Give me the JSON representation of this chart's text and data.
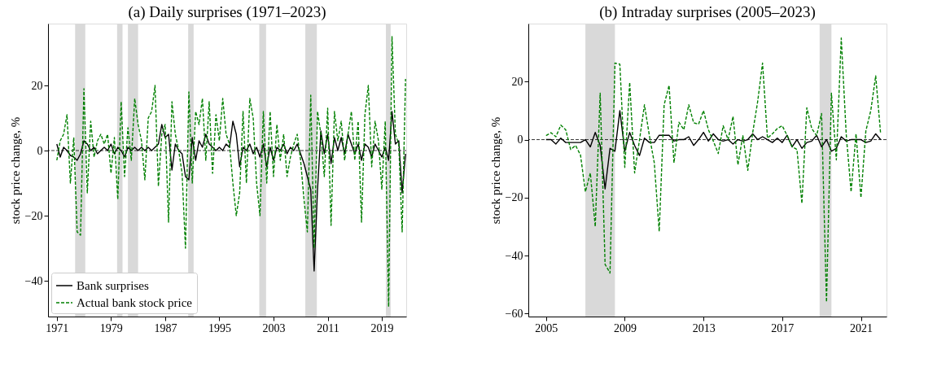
{
  "chart_data": [
    {
      "type": "line",
      "title": "(a) Daily surprises (1971–2023)",
      "ylabel": "stock price change, %",
      "x": [
        1971,
        1971.5,
        1972,
        1972.5,
        1973,
        1973.5,
        1974,
        1974.5,
        1975,
        1975.5,
        1976,
        1976.5,
        1977,
        1977.5,
        1978,
        1978.5,
        1979,
        1979.5,
        1980,
        1980.5,
        1981,
        1981.5,
        1982,
        1982.5,
        1983,
        1983.5,
        1984,
        1984.5,
        1985,
        1985.5,
        1986,
        1986.5,
        1987,
        1987.5,
        1988,
        1988.5,
        1989,
        1989.5,
        1990,
        1990.5,
        1991,
        1991.5,
        1992,
        1992.5,
        1993,
        1993.5,
        1994,
        1994.5,
        1995,
        1995.5,
        1996,
        1996.5,
        1997,
        1997.5,
        1998,
        1998.5,
        1999,
        1999.5,
        2000,
        2000.5,
        2001,
        2001.5,
        2002,
        2002.5,
        2003,
        2003.5,
        2004,
        2004.5,
        2005,
        2005.5,
        2006,
        2006.5,
        2007,
        2007.5,
        2008,
        2008.5,
        2009,
        2009.5,
        2010,
        2010.5,
        2011,
        2011.5,
        2012,
        2012.5,
        2013,
        2013.5,
        2014,
        2014.5,
        2015,
        2015.5,
        2016,
        2016.5,
        2017,
        2017.5,
        2018,
        2018.5,
        2019,
        2019.5,
        2020,
        2020.5,
        2021,
        2021.5,
        2022,
        2022.5
      ],
      "series": [
        {
          "name": "Bank surprises",
          "color": "#000000",
          "line_style": "solid",
          "values": [
            2,
            -2,
            1,
            0,
            -1.5,
            -2,
            -3,
            -1,
            3,
            2,
            0,
            1,
            -1,
            0,
            1,
            0,
            2,
            -1,
            1,
            0,
            -2,
            1,
            0,
            1,
            0,
            1,
            0,
            1,
            0,
            1,
            2,
            8,
            4,
            5,
            -6,
            2,
            0,
            -1,
            -8,
            -9,
            4,
            -3,
            3,
            1,
            5,
            2,
            1,
            0,
            1,
            0,
            2,
            1,
            9,
            5,
            -5,
            1,
            0,
            2,
            -1,
            1,
            -2,
            2,
            -5,
            1,
            -3,
            1,
            0,
            2,
            -1,
            1,
            0,
            2,
            -1,
            -4,
            -8,
            -12,
            -37,
            -12,
            6,
            -1,
            5,
            -4,
            4,
            0,
            4,
            -1,
            5,
            2,
            -1,
            2,
            -3,
            2,
            1,
            -2,
            2,
            0,
            -2,
            1,
            -3,
            12,
            2,
            3,
            -13,
            -1
          ]
        },
        {
          "name": "Actual bank stock price",
          "color": "#008000",
          "line_style": "dashed",
          "values": [
            -3,
            3,
            5,
            11,
            -10,
            4,
            -25,
            -26,
            19,
            -13,
            9,
            -2,
            3,
            5,
            2,
            5,
            -7,
            4,
            -15,
            15,
            -8,
            7,
            -3,
            16,
            8,
            3,
            -9,
            10,
            12,
            20,
            -11,
            5,
            8,
            -22,
            15,
            5,
            0,
            -7,
            -30,
            18,
            -10,
            12,
            8,
            16,
            -3,
            15,
            -7,
            11,
            3,
            16,
            5,
            2,
            -10,
            -20,
            -13,
            12,
            -10,
            16,
            10,
            -10,
            -20,
            12,
            -10,
            12,
            -8,
            8,
            -3,
            5,
            -8,
            -2,
            2,
            5,
            -3,
            -15,
            -25,
            17,
            -30,
            12,
            5,
            -8,
            13,
            -23,
            12,
            3,
            9,
            -3,
            5,
            12,
            -3,
            9,
            -22,
            11,
            20,
            -5,
            9,
            3,
            -12,
            9,
            -48,
            35,
            5,
            2,
            -25,
            22
          ]
        }
      ],
      "xlim": [
        1969.7,
        2022.6
      ],
      "xticks": [
        1971,
        1979,
        1987,
        1995,
        2003,
        2011,
        2019
      ],
      "ylim": [
        -51,
        39
      ],
      "yticks": [
        -40,
        -20,
        0,
        20
      ],
      "bands": [
        {
          "axis": "x",
          "from": 1973.7,
          "to": 1975.2,
          "color": "#d9d9d9"
        },
        {
          "axis": "x",
          "from": 1979.9,
          "to": 1980.7,
          "color": "#d9d9d9"
        },
        {
          "axis": "x",
          "from": 1981.5,
          "to": 1983.0,
          "color": "#d9d9d9"
        },
        {
          "axis": "x",
          "from": 1990.4,
          "to": 1991.2,
          "color": "#d9d9d9"
        },
        {
          "axis": "x",
          "from": 2000.9,
          "to": 2001.9,
          "color": "#d9d9d9"
        },
        {
          "axis": "x",
          "from": 2007.7,
          "to": 2009.4,
          "color": "#d9d9d9"
        },
        {
          "axis": "x",
          "from": 2019.6,
          "to": 2020.3,
          "color": "#d9d9d9"
        }
      ],
      "ref_lines": [
        {
          "axis": "y",
          "value": 0,
          "color": "#000000",
          "line_style": "dashed"
        }
      ],
      "grid": false,
      "legend": "bottom left",
      "marker": "none"
    },
    {
      "type": "line",
      "title": "(b) Intraday surprises (2005–2023)",
      "ylabel": "stock price change, %",
      "x": [
        2005,
        2005.25,
        2005.5,
        2005.75,
        2006,
        2006.25,
        2006.5,
        2006.75,
        2007,
        2007.25,
        2007.5,
        2007.75,
        2008,
        2008.25,
        2008.5,
        2008.75,
        2009,
        2009.25,
        2009.5,
        2009.75,
        2010,
        2010.25,
        2010.5,
        2010.75,
        2011,
        2011.25,
        2011.5,
        2011.75,
        2012,
        2012.25,
        2012.5,
        2012.75,
        2013,
        2013.25,
        2013.5,
        2013.75,
        2014,
        2014.25,
        2014.5,
        2014.75,
        2015,
        2015.25,
        2015.5,
        2015.75,
        2016,
        2016.25,
        2016.5,
        2016.75,
        2017,
        2017.25,
        2017.5,
        2017.75,
        2018,
        2018.25,
        2018.5,
        2018.75,
        2019,
        2019.25,
        2019.5,
        2019.75,
        2020,
        2020.25,
        2020.5,
        2020.75,
        2021,
        2021.25,
        2021.5,
        2021.75,
        2022
      ],
      "series": [
        {
          "color": "#000000",
          "line_style": "solid",
          "values": [
            0,
            0,
            -1.5,
            0.5,
            -1,
            -1,
            -1,
            -1,
            0,
            -2.5,
            2.5,
            -2,
            -17,
            -3,
            -4,
            10,
            -4,
            2.5,
            -2,
            -5.5,
            0.5,
            -1,
            -1,
            1.5,
            1.5,
            1.5,
            -0.5,
            0,
            0,
            1,
            -2,
            0,
            2.5,
            -0.5,
            2,
            0,
            -0.5,
            0,
            -1.5,
            0,
            -0.5,
            0,
            2,
            0,
            1,
            0,
            -1,
            0.5,
            -1,
            1.5,
            -2.5,
            0,
            -3,
            -1,
            -0.5,
            1.5,
            -2.5,
            0,
            -4,
            -3,
            1,
            -0.5,
            0,
            0,
            0,
            -1,
            -0.5,
            2,
            0
          ]
        },
        {
          "color": "#008000",
          "line_style": "dashed",
          "values": [
            1.4,
            2.4,
            1,
            5,
            3.4,
            -3.4,
            -2,
            -5.3,
            -18,
            -11.5,
            -30,
            16,
            -43,
            -46,
            26.4,
            26,
            -9.6,
            19.7,
            -11.5,
            0,
            12,
            1.4,
            -8,
            -31.7,
            12,
            18.7,
            -8,
            6,
            3.4,
            12,
            5.8,
            5.3,
            10,
            3.4,
            -0.5,
            -4.8,
            4.8,
            0,
            8,
            -8.7,
            1.4,
            -10.6,
            2.4,
            13,
            26.4,
            0.5,
            2,
            3.8,
            4.8,
            1.4,
            -2.4,
            -3.4,
            -22,
            11,
            3.8,
            1.4,
            9,
            -56,
            16,
            -7,
            35,
            2,
            -18,
            2,
            -20,
            3,
            10,
            22,
            2
          ]
        }
      ],
      "xlim": [
        2004.1,
        2022.3
      ],
      "xticks": [
        2005,
        2009,
        2013,
        2017,
        2021
      ],
      "ylim": [
        -61,
        40
      ],
      "yticks": [
        -60,
        -40,
        -20,
        0,
        20
      ],
      "bands": [
        {
          "axis": "x",
          "from": 2007.0,
          "to": 2008.5,
          "color": "#d9d9d9"
        },
        {
          "axis": "x",
          "from": 2018.9,
          "to": 2019.5,
          "color": "#d9d9d9"
        }
      ],
      "ref_lines": [
        {
          "axis": "y",
          "value": 0,
          "color": "#000000",
          "line_style": "dashed"
        }
      ],
      "grid": false,
      "legend": false,
      "marker": "none"
    }
  ]
}
